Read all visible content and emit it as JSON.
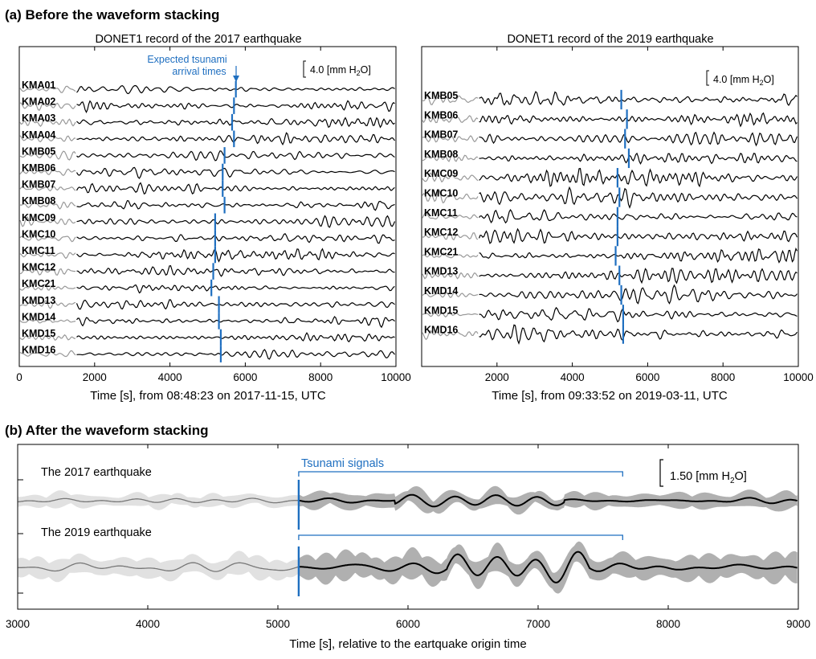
{
  "colors": {
    "signal": "#000000",
    "pre_event": "#999999",
    "band_pre": "#e1e1e1",
    "band_post": "#b0b0b0",
    "marker": "#1f6fc0"
  },
  "panel_a": {
    "title": "(a) Before the waveform stacking",
    "scale_label_prefix": "4.0 [mm H",
    "scale_label_sub": "2",
    "scale_label_suffix": "O]",
    "annotation_line1": "Expected tsunami",
    "annotation_line2": "arrival times"
  },
  "panel_b": {
    "title": "(b) After the waveform stacking",
    "scale_label_prefix": "1.50 [mm H",
    "scale_label_sub": "2",
    "scale_label_suffix": "O]",
    "tsunami_label": "Tsunami signals"
  },
  "chart_data": [
    {
      "type": "line",
      "title": "DONET1 record of the 2017 earthquake",
      "xlabel": "Time [s], from 08:48:23 on 2017-11-15, UTC",
      "xlim": [
        0,
        10000
      ],
      "xticks": [
        "0",
        "2000",
        "4000",
        "6000",
        "8000",
        "10000"
      ],
      "pre_event_end": 1500,
      "stations": [
        "KMA01",
        "KMA02",
        "KMA03",
        "KMA04",
        "KMB05",
        "KMB06",
        "KMB07",
        "KMB08",
        "KMC09",
        "KMC10",
        "KMC11",
        "KMC12",
        "KMC21",
        "KMD13",
        "KMD14",
        "KMD15",
        "KMD16"
      ],
      "expected_arrival_times": [
        5750,
        5700,
        5650,
        5700,
        5450,
        5400,
        5400,
        5450,
        5200,
        5200,
        5200,
        5150,
        5100,
        5300,
        5300,
        5350,
        5350
      ]
    },
    {
      "type": "line",
      "title": "DONET1 record of the 2019 earthquake",
      "xlabel": "Time [s], from 09:33:52 on 2019-03-11, UTC",
      "xlim": [
        0,
        10000
      ],
      "xticks": [
        "2000",
        "4000",
        "6000",
        "8000",
        "10000"
      ],
      "pre_event_end": 1500,
      "stations": [
        "KMB05",
        "KMB06",
        "KMB07",
        "KMB08",
        "KMC09",
        "KMC10",
        "KMC11",
        "KMC12",
        "KMC21",
        "KMD13",
        "KMD14",
        "KMD15",
        "KMD16"
      ],
      "expected_arrival_times": [
        5300,
        5450,
        5400,
        5500,
        5200,
        5250,
        5200,
        5200,
        5150,
        5250,
        5300,
        5350,
        5350
      ]
    },
    {
      "type": "line",
      "xlabel": "Time [s], relative to the eartquake origin time",
      "xlim": [
        3000,
        9000
      ],
      "xticks": [
        "3000",
        "4000",
        "5000",
        "6000",
        "7000",
        "8000",
        "9000"
      ],
      "series": [
        {
          "name": "The 2017 earthquake",
          "signal_start": 5160,
          "signal_end": 7650
        },
        {
          "name": "The 2019 earthquake",
          "signal_start": 5160,
          "signal_end": 7650
        }
      ]
    }
  ]
}
